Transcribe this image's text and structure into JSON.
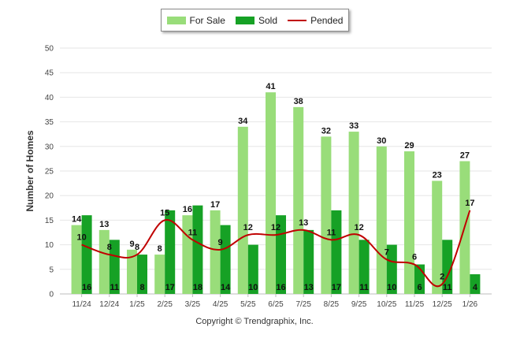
{
  "chart_data": {
    "type": "bar",
    "categories": [
      "11/24",
      "12/24",
      "1/25",
      "2/25",
      "3/25",
      "4/25",
      "5/25",
      "6/25",
      "7/25",
      "8/25",
      "9/25",
      "10/25",
      "11/25",
      "12/25",
      "1/26"
    ],
    "series": [
      {
        "name": "For Sale",
        "kind": "bar",
        "color": "#99dd7a",
        "values": [
          14,
          13,
          9,
          8,
          16,
          17,
          34,
          41,
          38,
          32,
          33,
          30,
          29,
          23,
          27
        ]
      },
      {
        "name": "Sold",
        "kind": "bar",
        "color": "#16a125",
        "values": [
          16,
          11,
          8,
          17,
          18,
          14,
          10,
          16,
          13,
          17,
          11,
          10,
          6,
          11,
          4
        ]
      },
      {
        "name": "Pended",
        "kind": "line",
        "color": "#c00000",
        "values": [
          10,
          8,
          8,
          15,
          11,
          9,
          12,
          12,
          13,
          11,
          12,
          7,
          6,
          2,
          17
        ]
      }
    ],
    "ylabel": "Number of Homes",
    "xlabel": "",
    "ylim": [
      0,
      50
    ],
    "yticks": [
      0,
      5,
      10,
      15,
      20,
      25,
      30,
      35,
      40,
      45,
      50
    ],
    "grid": true,
    "legend": "top-center"
  },
  "footer": "Copyright © Trendgraphix, Inc."
}
